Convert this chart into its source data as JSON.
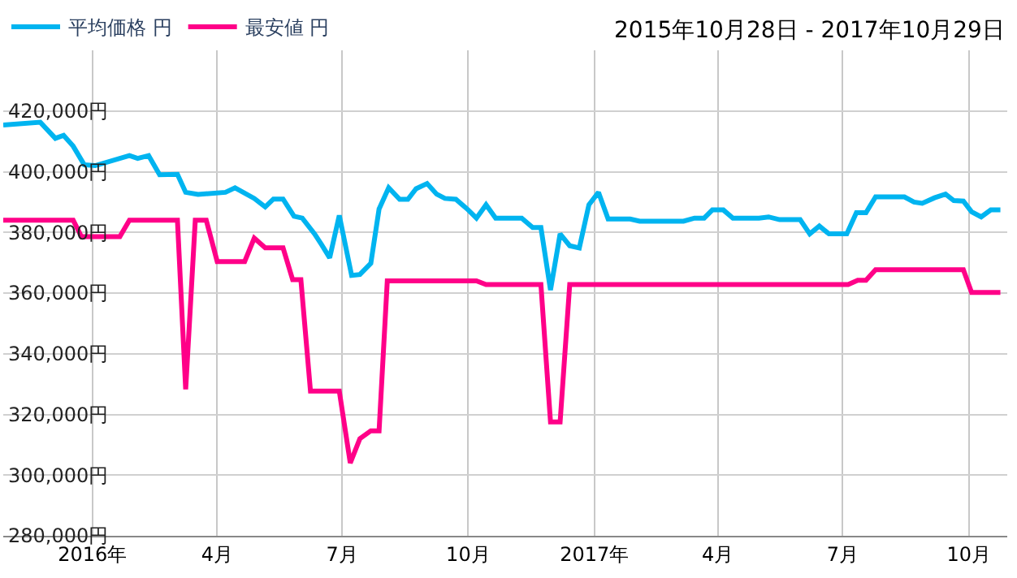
{
  "chart_data": {
    "type": "line",
    "annotations": [
      "2015年10月28日 - 2017年10月29日"
    ],
    "series": [
      {
        "name": "平均価格 円",
        "color": "#00b4f0",
        "x": [
          "2015-10-28",
          "2015-11-24",
          "2015-12-05",
          "2015-12-11",
          "2015-12-18",
          "2015-12-26",
          "2016-01-03",
          "2016-01-28",
          "2016-02-03",
          "2016-02-11",
          "2016-02-19",
          "2016-03-03",
          "2016-03-09",
          "2016-03-18",
          "2016-04-07",
          "2016-04-14",
          "2016-04-28",
          "2016-05-06",
          "2016-05-12",
          "2016-05-19",
          "2016-05-27",
          "2016-06-02",
          "2016-06-11",
          "2016-06-16",
          "2016-06-22",
          "2016-06-29",
          "2016-07-08",
          "2016-07-14",
          "2016-07-22",
          "2016-07-28",
          "2016-08-04",
          "2016-08-12",
          "2016-08-18",
          "2016-08-24",
          "2016-09-01",
          "2016-09-08",
          "2016-09-14",
          "2016-09-22",
          "2016-10-01",
          "2016-10-07",
          "2016-10-14",
          "2016-10-21",
          "2016-11-09",
          "2016-11-17",
          "2016-11-23",
          "2016-11-30",
          "2016-12-07",
          "2016-12-14",
          "2016-12-21",
          "2016-12-28",
          "2017-01-04",
          "2017-01-11",
          "2017-01-27",
          "2017-02-03",
          "2017-03-07",
          "2017-03-15",
          "2017-03-22",
          "2017-03-28",
          "2017-04-05",
          "2017-04-12",
          "2017-05-01",
          "2017-05-08",
          "2017-05-16",
          "2017-05-31",
          "2017-06-07",
          "2017-06-14",
          "2017-06-21",
          "2017-07-04",
          "2017-07-11",
          "2017-07-18",
          "2017-07-25",
          "2017-08-15",
          "2017-08-22",
          "2017-08-28",
          "2017-09-06",
          "2017-09-14",
          "2017-09-20",
          "2017-09-27",
          "2017-10-03",
          "2017-10-10",
          "2017-10-17",
          "2017-10-24"
        ],
        "values": [
          415400,
          416300,
          411000,
          412000,
          408400,
          402300,
          402000,
          405300,
          404400,
          405300,
          399000,
          399100,
          393200,
          392500,
          393200,
          394700,
          391200,
          388400,
          391000,
          391000,
          385300,
          384700,
          379500,
          376000,
          371600,
          385600,
          365800,
          366100,
          369800,
          387700,
          394700,
          390900,
          390900,
          394400,
          396100,
          392600,
          391200,
          390900,
          387400,
          384700,
          389100,
          384700,
          384700,
          381600,
          381600,
          361000,
          379500,
          375600,
          374900,
          389100,
          393200,
          384400,
          384400,
          383700,
          383700,
          384700,
          384700,
          387400,
          387400,
          384700,
          384700,
          385100,
          384200,
          384200,
          379500,
          382100,
          379500,
          379500,
          386500,
          386500,
          391700,
          391700,
          390000,
          389600,
          391400,
          392600,
          390500,
          390300,
          386800,
          385100,
          387400,
          387400
        ]
      },
      {
        "name": "最安値 円",
        "color": "#ff0088",
        "x": [
          "2015-10-28",
          "2015-12-18",
          "2015-12-24",
          "2016-01-21",
          "2016-01-28",
          "2016-03-03",
          "2016-03-09",
          "2016-03-16",
          "2016-03-24",
          "2016-04-01",
          "2016-04-21",
          "2016-04-28",
          "2016-05-06",
          "2016-05-19",
          "2016-05-26",
          "2016-06-01",
          "2016-06-08",
          "2016-06-29",
          "2016-07-07",
          "2016-07-14",
          "2016-07-22",
          "2016-07-28",
          "2016-08-03",
          "2016-10-07",
          "2016-10-14",
          "2016-11-23",
          "2016-11-30",
          "2016-12-07",
          "2016-12-14",
          "2017-07-05",
          "2017-07-12",
          "2017-07-18",
          "2017-07-25",
          "2017-09-27",
          "2017-10-03",
          "2017-10-24"
        ],
        "values": [
          384000,
          384000,
          378600,
          378600,
          384000,
          384000,
          328300,
          384000,
          384000,
          370400,
          370400,
          378100,
          374900,
          374900,
          364400,
          364400,
          327700,
          327700,
          304000,
          312000,
          314600,
          314600,
          364000,
          364000,
          362800,
          362800,
          317500,
          317500,
          362800,
          362800,
          364200,
          364200,
          367700,
          367700,
          360200,
          360200
        ]
      }
    ],
    "xlim": [
      "2015-10-28",
      "2017-10-29"
    ],
    "xticks": [
      {
        "value": "2016-01-01",
        "label": "2016年"
      },
      {
        "value": "2016-04-01",
        "label": "4月"
      },
      {
        "value": "2016-07-01",
        "label": "7月"
      },
      {
        "value": "2016-10-01",
        "label": "10月"
      },
      {
        "value": "2017-01-01",
        "label": "2017年"
      },
      {
        "value": "2017-04-01",
        "label": "4月"
      },
      {
        "value": "2017-07-01",
        "label": "7月"
      },
      {
        "value": "2017-10-01",
        "label": "10月"
      }
    ],
    "ylim": [
      280000,
      440000
    ],
    "yticks": [
      {
        "value": 280000,
        "label": "280,000円"
      },
      {
        "value": 300000,
        "label": "300,000円"
      },
      {
        "value": 320000,
        "label": "320,000円"
      },
      {
        "value": 340000,
        "label": "340,000円"
      },
      {
        "value": 360000,
        "label": "360,000円"
      },
      {
        "value": 380000,
        "label": "380,000円"
      },
      {
        "value": 400000,
        "label": "400,000円"
      },
      {
        "value": 420000,
        "label": "420,000円"
      }
    ],
    "grid": true,
    "legend": "top left",
    "marker": "none",
    "line_style": "solid"
  }
}
